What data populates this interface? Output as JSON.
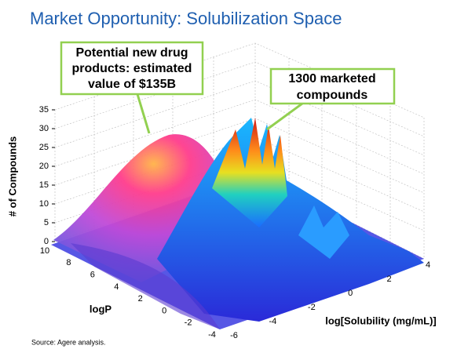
{
  "chart_data": {
    "type": "surface3d",
    "title": "Market Opportunity: Solubilization Space",
    "annotations": [
      "Potential new drug products: estimated value of $135B",
      "1300 marketed compounds"
    ],
    "zlabel": "# of Compounds",
    "zlim": [
      0,
      35
    ],
    "zticks": [
      0,
      5,
      10,
      15,
      20,
      25,
      30,
      35
    ],
    "ylabel": "logP",
    "ylim": [
      -4,
      10
    ],
    "yticks": [
      10,
      8,
      6,
      4,
      2,
      0,
      -2,
      -4
    ],
    "xlabel": "log[Solubility (mg/mL)]",
    "xlim": [
      -6,
      4
    ],
    "xticks": [
      -6,
      -4,
      -2,
      0,
      2,
      4
    ],
    "source": "Source: Agere analysis."
  }
}
